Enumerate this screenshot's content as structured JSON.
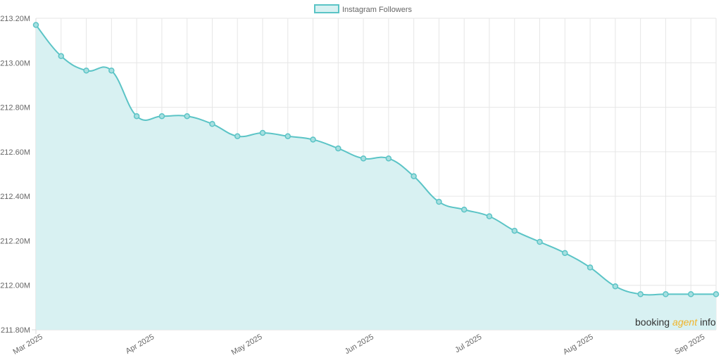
{
  "chart_data": {
    "type": "area",
    "title": "",
    "xlabel": "",
    "ylabel": "",
    "legend": {
      "position": "top-center",
      "label": "Instagram Followers"
    },
    "grid": true,
    "colors": {
      "line": "#5bc4c6",
      "fill": "#d8f1f2",
      "point": "#5bc4c6"
    },
    "x_ticks": [
      "Mar 2025",
      "Apr 2025",
      "May 2025",
      "Jun 2025",
      "Jul 2025",
      "Aug 2025",
      "Sep 2025"
    ],
    "y_ticks": [
      "211.80M",
      "212.00M",
      "212.20M",
      "212.40M",
      "212.60M",
      "212.80M",
      "213.00M",
      "213.20M"
    ],
    "ylim": [
      211.8,
      213.2
    ],
    "series": [
      {
        "name": "Instagram Followers",
        "x": [
          "2025-02-27",
          "2025-03-06",
          "2025-03-13",
          "2025-03-20",
          "2025-03-27",
          "2025-04-03",
          "2025-04-10",
          "2025-04-17",
          "2025-04-24",
          "2025-05-01",
          "2025-05-08",
          "2025-05-15",
          "2025-05-22",
          "2025-05-29",
          "2025-06-05",
          "2025-06-12",
          "2025-06-19",
          "2025-06-26",
          "2025-07-03",
          "2025-07-10",
          "2025-07-17",
          "2025-07-24",
          "2025-07-31",
          "2025-08-07",
          "2025-08-14",
          "2025-08-21",
          "2025-08-28",
          "2025-09-04"
        ],
        "values": [
          213.17,
          213.03,
          212.965,
          212.965,
          212.76,
          212.76,
          212.76,
          212.725,
          212.67,
          212.685,
          212.67,
          212.655,
          212.615,
          212.57,
          212.57,
          212.49,
          212.375,
          212.34,
          212.31,
          212.245,
          212.195,
          212.145,
          212.08,
          211.995,
          211.96,
          211.96,
          211.96,
          211.96
        ]
      }
    ]
  },
  "watermark": {
    "part1": "booking",
    "part2": "agent",
    "part3": "info"
  }
}
